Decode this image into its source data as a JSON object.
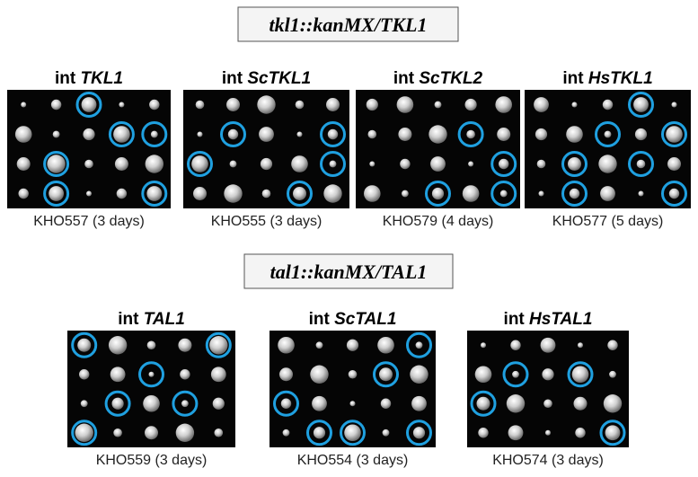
{
  "sections": [
    {
      "label": "tkl1::kanMX/TKL1",
      "panels": [
        {
          "prefix": "int",
          "gene": "TKL1",
          "caption": "KHO557 (3 days)"
        },
        {
          "prefix": "int",
          "gene": "ScTKL1",
          "caption": "KHO555 (3 days)"
        },
        {
          "prefix": "int",
          "gene": "ScTKL2",
          "caption": "KHO579 (4 days)"
        },
        {
          "prefix": "int",
          "gene": "HsTKL1",
          "caption": "KHO577 (5 days)"
        }
      ]
    },
    {
      "label": "tal1::kanMX/TAL1",
      "panels": [
        {
          "prefix": "int",
          "gene": "TAL1",
          "caption": "KHO559 (3 days)"
        },
        {
          "prefix": "int",
          "gene": "ScTAL1",
          "caption": "KHO554 (3 days)"
        },
        {
          "prefix": "int",
          "gene": "HsTAL1",
          "caption": "KHO574 (3 days)"
        }
      ]
    }
  ]
}
